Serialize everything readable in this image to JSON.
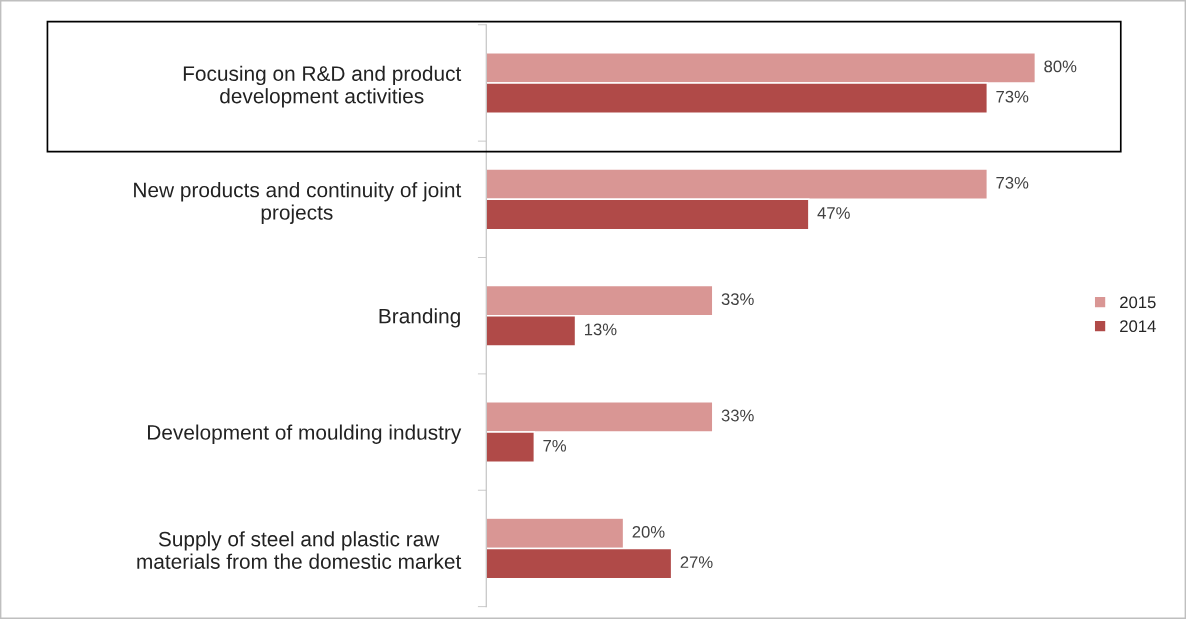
{
  "chart_data": {
    "type": "bar",
    "orientation": "horizontal",
    "categories": [
      "Focusing on R&D and product\ndevelopment activities",
      "New products and continuity of joint\nprojects",
      "Branding",
      "Development of moulding industry",
      "Supply of steel and plastic raw\nmaterials from the domestic market"
    ],
    "series": [
      {
        "name": "2015",
        "color": "#d99694",
        "values": [
          80,
          73,
          33,
          33,
          20
        ],
        "value_labels": [
          "80%",
          "73%",
          "33%",
          "33%",
          "20%"
        ]
      },
      {
        "name": "2014",
        "color": "#b04a48",
        "values": [
          73,
          47,
          13,
          7,
          27
        ],
        "value_labels": [
          "73%",
          "47%",
          "13%",
          "7%",
          "27%"
        ]
      }
    ],
    "tick_labels": "y",
    "legend": "right",
    "grid": false
  }
}
